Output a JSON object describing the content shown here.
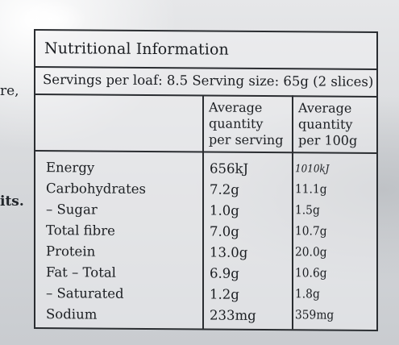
{
  "edge_text": {
    "line_1": "re,",
    "line_2": "its."
  },
  "panel": {
    "title": "Nutritional Information",
    "servings_per_loaf": "Servings per loaf: 8.5",
    "serving_size": "Serving size: 65g (2 slices)",
    "column_headers": {
      "per_serving": [
        "Average",
        "quantity",
        "per serving"
      ],
      "per_100g": [
        "Average",
        "quantity",
        "per 100g"
      ]
    },
    "rows": [
      {
        "label": "Energy",
        "per_serving": "656kJ",
        "per_100g": "1010kJ"
      },
      {
        "label": "Carbohydrates",
        "per_serving": "7.2g",
        "per_100g": "11.1g"
      },
      {
        "label": "– Sugar",
        "per_serving": "1.0g",
        "per_100g": "1.5g"
      },
      {
        "label": "Total fibre",
        "per_serving": "7.0g",
        "per_100g": "10.7g"
      },
      {
        "label": "Protein",
        "per_serving": "13.0g",
        "per_100g": "20.0g"
      },
      {
        "label": "Fat – Total",
        "per_serving": "6.9g",
        "per_100g": "10.6g"
      },
      {
        "label": "– Saturated",
        "per_serving": "1.2g",
        "per_100g": "1.8g"
      },
      {
        "label": "Sodium",
        "per_serving": "233mg",
        "per_100g": "359mg"
      }
    ]
  }
}
